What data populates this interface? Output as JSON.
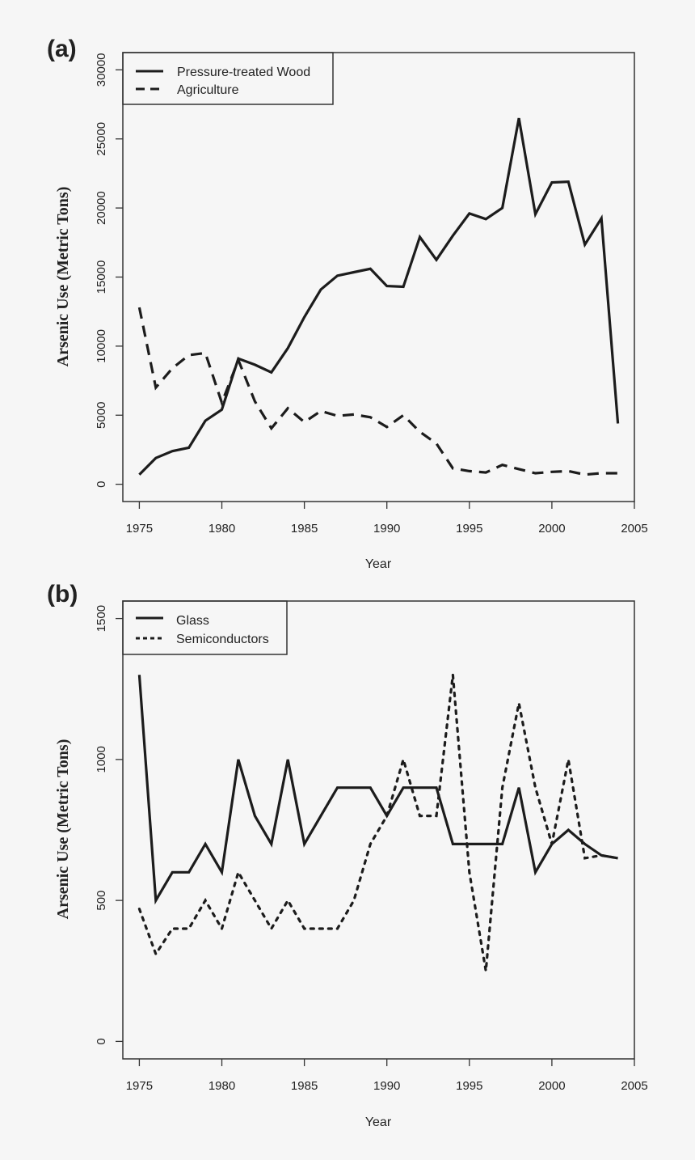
{
  "chart_data": [
    {
      "type": "line",
      "panel_label": "(a)",
      "xlabel": "Year",
      "ylabel": "Arsenic Use (Metric Tons)",
      "xlim": [
        1974,
        2005
      ],
      "ylim": [
        -1250,
        31250
      ],
      "xticks": [
        1975,
        1980,
        1985,
        1990,
        1995,
        2000,
        2005
      ],
      "yticks": [
        0,
        5000,
        10000,
        15000,
        20000,
        25000,
        30000
      ],
      "grid": false,
      "legend_position": "top-left",
      "x": [
        1975,
        1976,
        1977,
        1978,
        1979,
        1980,
        1981,
        1982,
        1983,
        1984,
        1985,
        1986,
        1987,
        1988,
        1989,
        1990,
        1991,
        1992,
        1993,
        1994,
        1995,
        1996,
        1997,
        1998,
        1999,
        2000,
        2001,
        2002,
        2003,
        2004
      ],
      "series": [
        {
          "name": "Pressure-treated Wood",
          "style": "solid",
          "values": [
            700,
            1900,
            2400,
            2650,
            4600,
            5400,
            9100,
            8650,
            8100,
            9850,
            12100,
            14100,
            15100,
            15350,
            15600,
            14350,
            14300,
            17900,
            16250,
            18000,
            19600,
            19200,
            20000,
            26500,
            19550,
            21850,
            21900,
            17350,
            19250,
            4400
          ]
        },
        {
          "name": "Agriculture",
          "style": "dashed",
          "values": [
            12800,
            7000,
            8400,
            9350,
            9500,
            5900,
            9000,
            6000,
            4050,
            5500,
            4500,
            5300,
            4950,
            5050,
            4850,
            4150,
            5000,
            3800,
            2950,
            1150,
            950,
            850,
            1400,
            1100,
            800,
            900,
            950,
            700,
            800,
            800
          ]
        }
      ]
    },
    {
      "type": "line",
      "panel_label": "(b)",
      "xlabel": "Year",
      "ylabel": "Arsenic Use (Metric Tons)",
      "xlim": [
        1974,
        2005
      ],
      "ylim": [
        -62,
        1562
      ],
      "xticks": [
        1975,
        1980,
        1985,
        1990,
        1995,
        2000,
        2005
      ],
      "yticks": [
        0,
        500,
        1000,
        1500
      ],
      "grid": false,
      "legend_position": "top-left",
      "x": [
        1975,
        1976,
        1977,
        1978,
        1979,
        1980,
        1981,
        1982,
        1983,
        1984,
        1985,
        1986,
        1987,
        1988,
        1989,
        1990,
        1991,
        1992,
        1993,
        1994,
        1995,
        1996,
        1997,
        1998,
        1999,
        2000,
        2001,
        2002,
        2003,
        2004
      ],
      "series": [
        {
          "name": "Glass",
          "style": "solid",
          "values": [
            1300,
            500,
            600,
            600,
            700,
            600,
            1000,
            800,
            700,
            1000,
            700,
            800,
            900,
            900,
            900,
            800,
            900,
            900,
            900,
            700,
            700,
            700,
            700,
            900,
            600,
            700,
            750,
            700,
            660,
            650
          ]
        },
        {
          "name": "Semiconductors",
          "style": "dotted",
          "values": [
            470,
            310,
            400,
            400,
            500,
            400,
            600,
            500,
            400,
            500,
            400,
            400,
            400,
            500,
            700,
            800,
            1000,
            800,
            800,
            1300,
            600,
            250,
            900,
            1200,
            900,
            700,
            1000,
            650,
            660,
            650
          ]
        }
      ]
    }
  ]
}
